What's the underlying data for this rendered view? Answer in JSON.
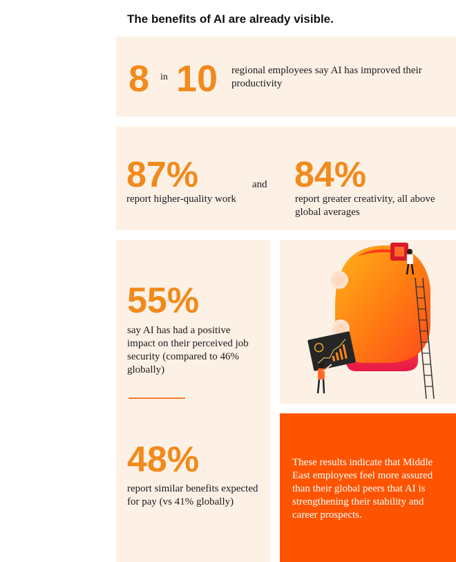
{
  "title": "The benefits of AI are already visible.",
  "stat1": {
    "num_a": "8",
    "joiner": "in",
    "num_b": "10",
    "text": "regional employees say AI has improved their productivity"
  },
  "stat2": {
    "left_value": "87%",
    "left_text": "report higher-quality work",
    "joiner": "and",
    "right_value": "84%",
    "right_text": "report greater creativity, all above global averages"
  },
  "stat3": {
    "value": "55%",
    "text": "say AI has had a positive impact on their perceived job security (compared to 46% globally)"
  },
  "stat4": {
    "value": "48%",
    "text": "report similar benefits expected for pay (vs 41% globally)"
  },
  "callout": {
    "text": "These results indicate that Middle East employees feel more assured than their global peers that AI is strengthening their stability and career prospects."
  },
  "colors": {
    "accent": "#f18a1c",
    "callout_bg": "#fe5400",
    "panel_bg": "#fdf1e6",
    "divider": "#f27a2a"
  }
}
